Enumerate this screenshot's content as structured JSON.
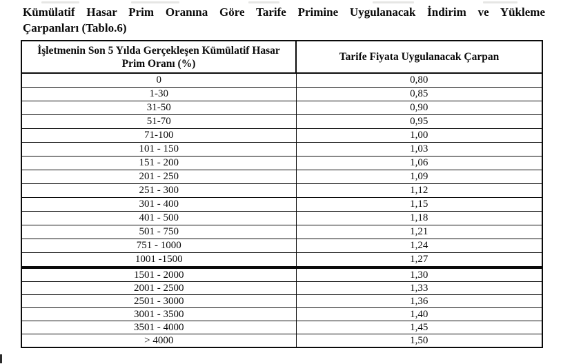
{
  "document": {
    "title_line1": "Kümülatif Hasar Prim Oranına Göre Tarife Primine Uygulanacak İndirim ve Yükleme",
    "title_line2": "Çarpanları (Tablo.6)"
  },
  "table": {
    "headers": [
      "İşletmenin Son 5 Yılda Gerçekleşen Kümülatif Hasar Prim Oranı (%)",
      "Tarife Fiyata Uygulanacak Çarpan"
    ],
    "block1_rows": [
      {
        "range": "0",
        "multiplier": "0,80"
      },
      {
        "range": "1-30",
        "multiplier": "0,85"
      },
      {
        "range": "31-50",
        "multiplier": "0,90"
      },
      {
        "range": "51-70",
        "multiplier": "0,95"
      },
      {
        "range": "71-100",
        "multiplier": "1,00"
      },
      {
        "range": "101 - 150",
        "multiplier": "1,03"
      },
      {
        "range": "151 - 200",
        "multiplier": "1,06"
      },
      {
        "range": "201 - 250",
        "multiplier": "1,09"
      },
      {
        "range": "251 - 300",
        "multiplier": "1,12"
      },
      {
        "range": "301 - 400",
        "multiplier": "1,15"
      },
      {
        "range": "401 - 500",
        "multiplier": "1,18"
      },
      {
        "range": "501 - 750",
        "multiplier": "1,21"
      },
      {
        "range": "751 - 1000",
        "multiplier": "1,24"
      },
      {
        "range": "1001 -1500",
        "multiplier": "1,27"
      }
    ],
    "block2_rows": [
      {
        "range": "1501 - 2000",
        "multiplier": "1,30"
      },
      {
        "range": "2001 - 2500",
        "multiplier": "1,33"
      },
      {
        "range": "2501 - 3000",
        "multiplier": "1,36"
      },
      {
        "range": "3001 - 3500",
        "multiplier": "1,40"
      },
      {
        "range": "3501 - 4000",
        "multiplier": "1,45"
      },
      {
        "range": "> 4000",
        "multiplier": "1,50"
      }
    ]
  }
}
